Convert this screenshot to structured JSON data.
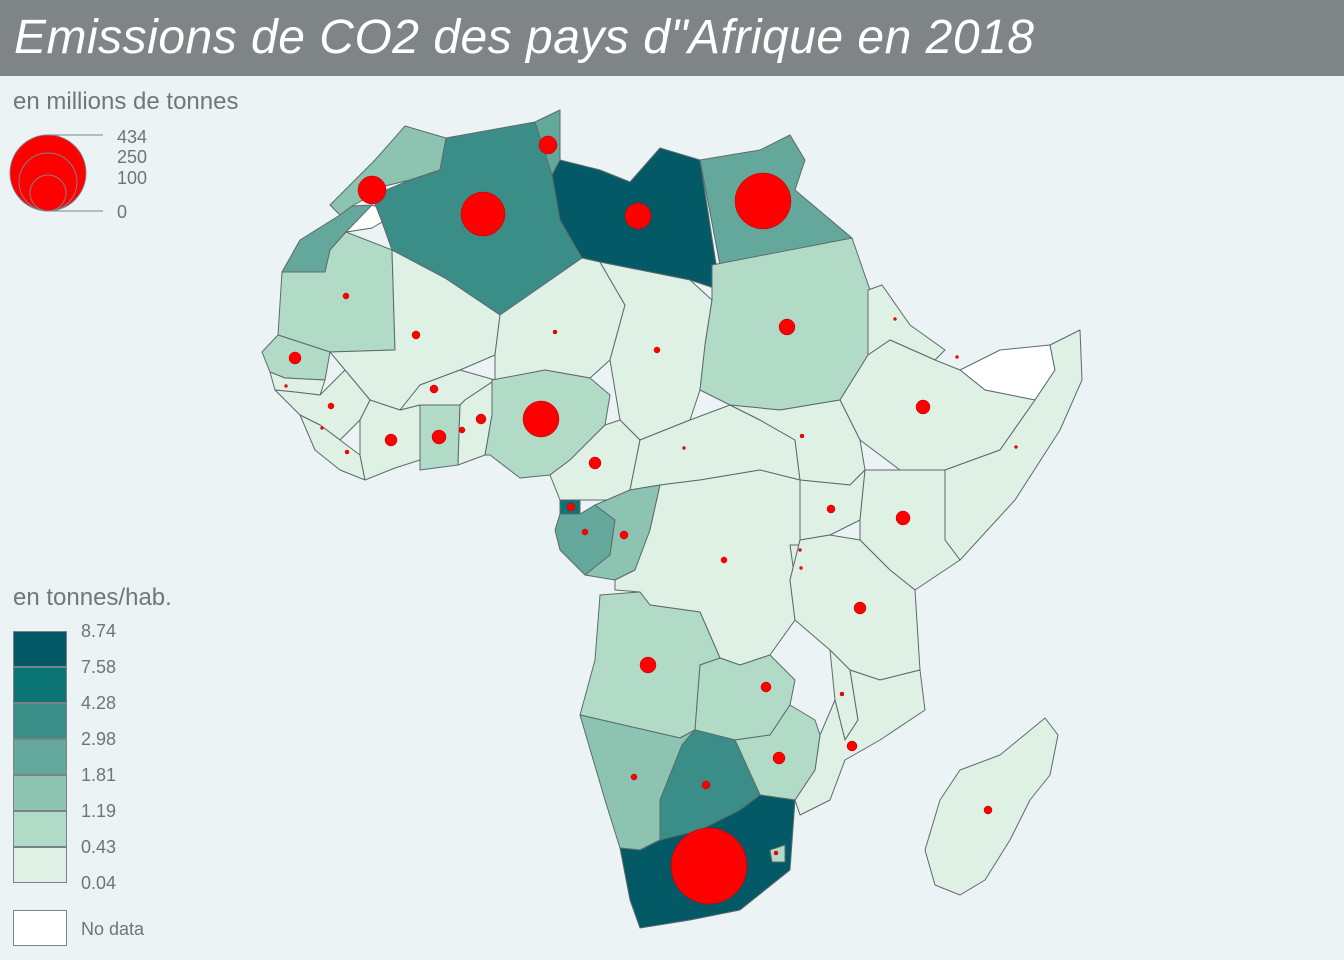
{
  "title": "Emissions de CO2 des pays d\"Afrique en 2018",
  "size_legend": {
    "title": "en millions de tonnes",
    "values": [
      "434",
      "250",
      "100",
      "0"
    ],
    "circle_color": "#ff0000"
  },
  "color_legend": {
    "title": "en tonnes/hab.",
    "breaks": [
      "8.74",
      "7.58",
      "4.28",
      "2.98",
      "1.81",
      "1.19",
      "0.43",
      "0.04"
    ],
    "classes": [
      {
        "color": "#035a66"
      },
      {
        "color": "#0b7575"
      },
      {
        "color": "#3a8e87"
      },
      {
        "color": "#64a89b"
      },
      {
        "color": "#8cc3b1"
      },
      {
        "color": "#b1dac7"
      },
      {
        "color": "#dff0e5"
      }
    ],
    "no_data_label": "No data",
    "no_data_color": "#ffffff"
  },
  "colors": {
    "background": "#ecf3f4",
    "title_bar": "#7f8586",
    "border": "#5d6a6d",
    "ocean": "#ecf3f4"
  }
}
